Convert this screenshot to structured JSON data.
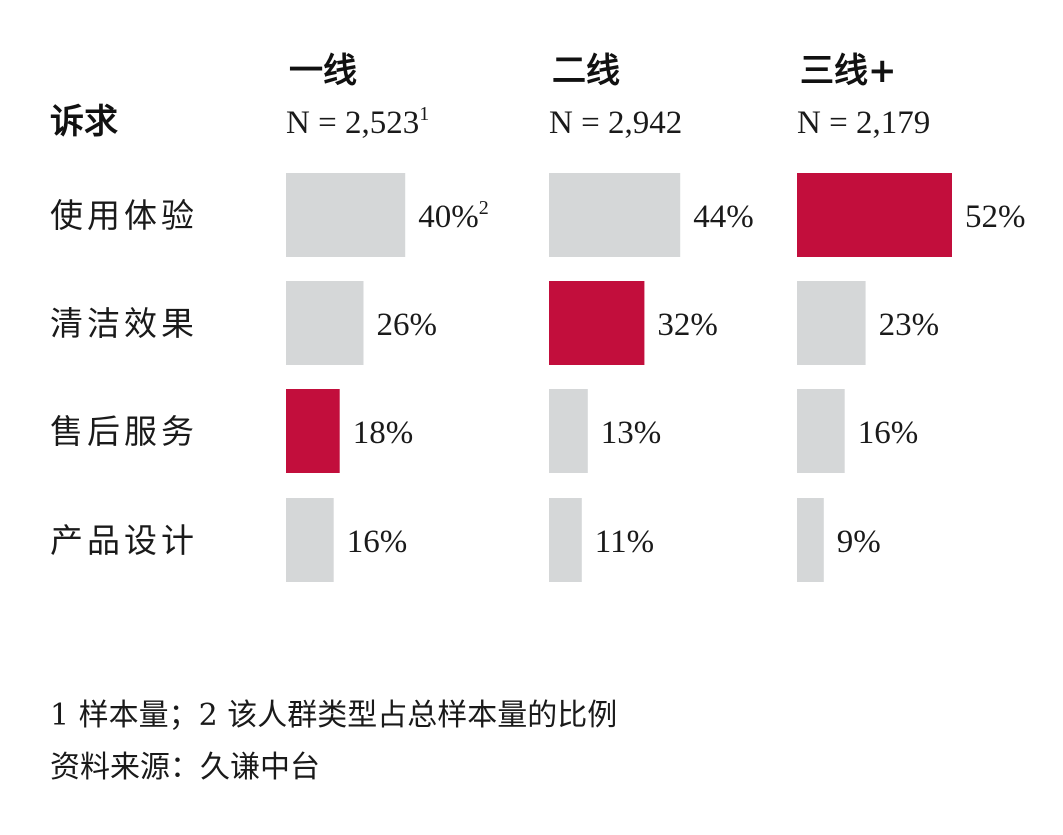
{
  "chart_data": {
    "type": "bar",
    "orientation": "horizontal",
    "row_header": "诉求",
    "categories": [
      "使用体验",
      "清洁效果",
      "售后服务",
      "产品设计"
    ],
    "series": [
      {
        "name": "一线",
        "sample": "N = 2,523",
        "sample_sup": "1",
        "values": [
          40,
          26,
          18,
          16
        ],
        "value_labels": [
          "40%",
          "26%",
          "18%",
          "16%"
        ],
        "highlight_index": 2
      },
      {
        "name": "二线",
        "sample": "N = 2,942",
        "sample_sup": "",
        "values": [
          44,
          32,
          13,
          11
        ],
        "value_labels": [
          "44%",
          "32%",
          "13%",
          "11%"
        ],
        "highlight_index": 1
      },
      {
        "name": "三线+",
        "sample": "N = 2,179",
        "sample_sup": "",
        "values": [
          52,
          23,
          16,
          9
        ],
        "value_labels": [
          "52%",
          "23%",
          "16%",
          "9%"
        ],
        "highlight_index": 0
      }
    ],
    "first_value_sup": "2",
    "xlim": [
      0,
      52
    ],
    "grid": false,
    "legend": "none"
  },
  "colors": {
    "highlight": "#c20e3c",
    "neutral": "#d5d7d8",
    "text": "#1a1a1a"
  },
  "footnotes": [
    "1 样本量；2 该人群类型占总样本量的比例",
    "资料来源：久谦中台"
  ]
}
